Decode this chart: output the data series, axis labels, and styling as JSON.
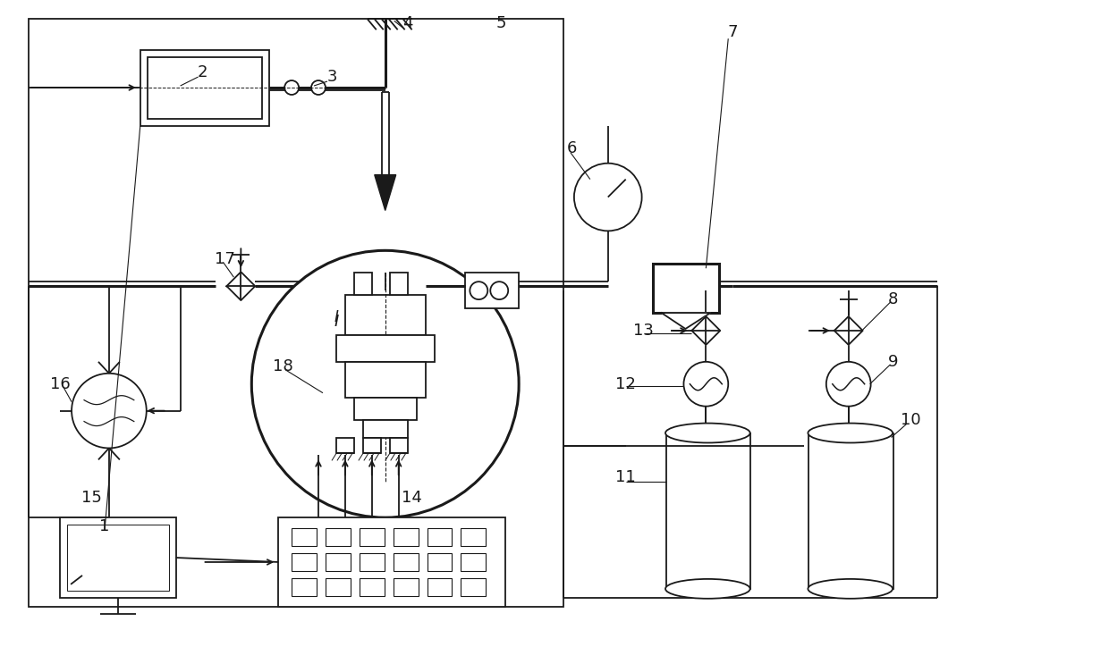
{
  "bg_color": "#ffffff",
  "lc": "#1a1a1a",
  "lw": 1.3,
  "tlw": 2.2,
  "fig_w": 12.4,
  "fig_h": 7.24,
  "dpi": 100
}
